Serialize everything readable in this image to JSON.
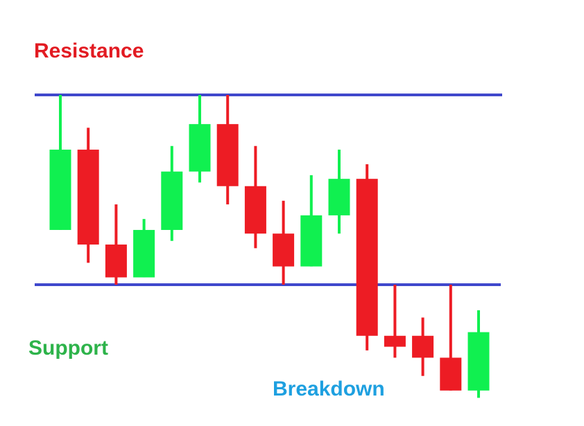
{
  "chart_data": {
    "type": "candlestick",
    "y_axis": "unlabeled",
    "colors": {
      "bullish": "#10f050",
      "bearish": "#ed1c24",
      "level_line": "#3f48cc",
      "resistance_label": "#e21b22",
      "support_label": "#2db34a",
      "breakdown_label": "#1ea0e0"
    },
    "levels": {
      "resistance": 90,
      "support": 64
    },
    "candles": [
      {
        "open": 71.5,
        "high": 90.0,
        "low": 71.5,
        "close": 82.5
      },
      {
        "open": 82.5,
        "high": 85.5,
        "low": 67.0,
        "close": 69.5
      },
      {
        "open": 69.5,
        "high": 75.0,
        "low": 64.0,
        "close": 65.0
      },
      {
        "open": 65.0,
        "high": 73.0,
        "low": 65.0,
        "close": 71.5
      },
      {
        "open": 71.5,
        "high": 83.0,
        "low": 70.0,
        "close": 79.5
      },
      {
        "open": 79.5,
        "high": 90.0,
        "low": 78.0,
        "close": 86.0
      },
      {
        "open": 86.0,
        "high": 90.0,
        "low": 75.0,
        "close": 77.5
      },
      {
        "open": 77.5,
        "high": 83.0,
        "low": 69.0,
        "close": 71.0
      },
      {
        "open": 71.0,
        "high": 75.5,
        "low": 64.0,
        "close": 66.5
      },
      {
        "open": 66.5,
        "high": 79.0,
        "low": 66.5,
        "close": 73.5
      },
      {
        "open": 73.5,
        "high": 82.5,
        "low": 71.0,
        "close": 78.5
      },
      {
        "open": 78.5,
        "high": 80.5,
        "low": 55.0,
        "close": 57.0
      },
      {
        "open": 57.0,
        "high": 64.0,
        "low": 54.0,
        "close": 55.5
      },
      {
        "open": 57.0,
        "high": 59.5,
        "low": 51.5,
        "close": 54.0
      },
      {
        "open": 54.0,
        "high": 64.0,
        "low": 49.5,
        "close": 49.5
      },
      {
        "open": 49.5,
        "high": 60.5,
        "low": 48.5,
        "close": 57.5
      }
    ],
    "annotations": [
      {
        "key": "resistance",
        "text": "Resistance"
      },
      {
        "key": "support",
        "text": "Support"
      },
      {
        "key": "breakdown",
        "text": "Breakdown"
      }
    ]
  }
}
